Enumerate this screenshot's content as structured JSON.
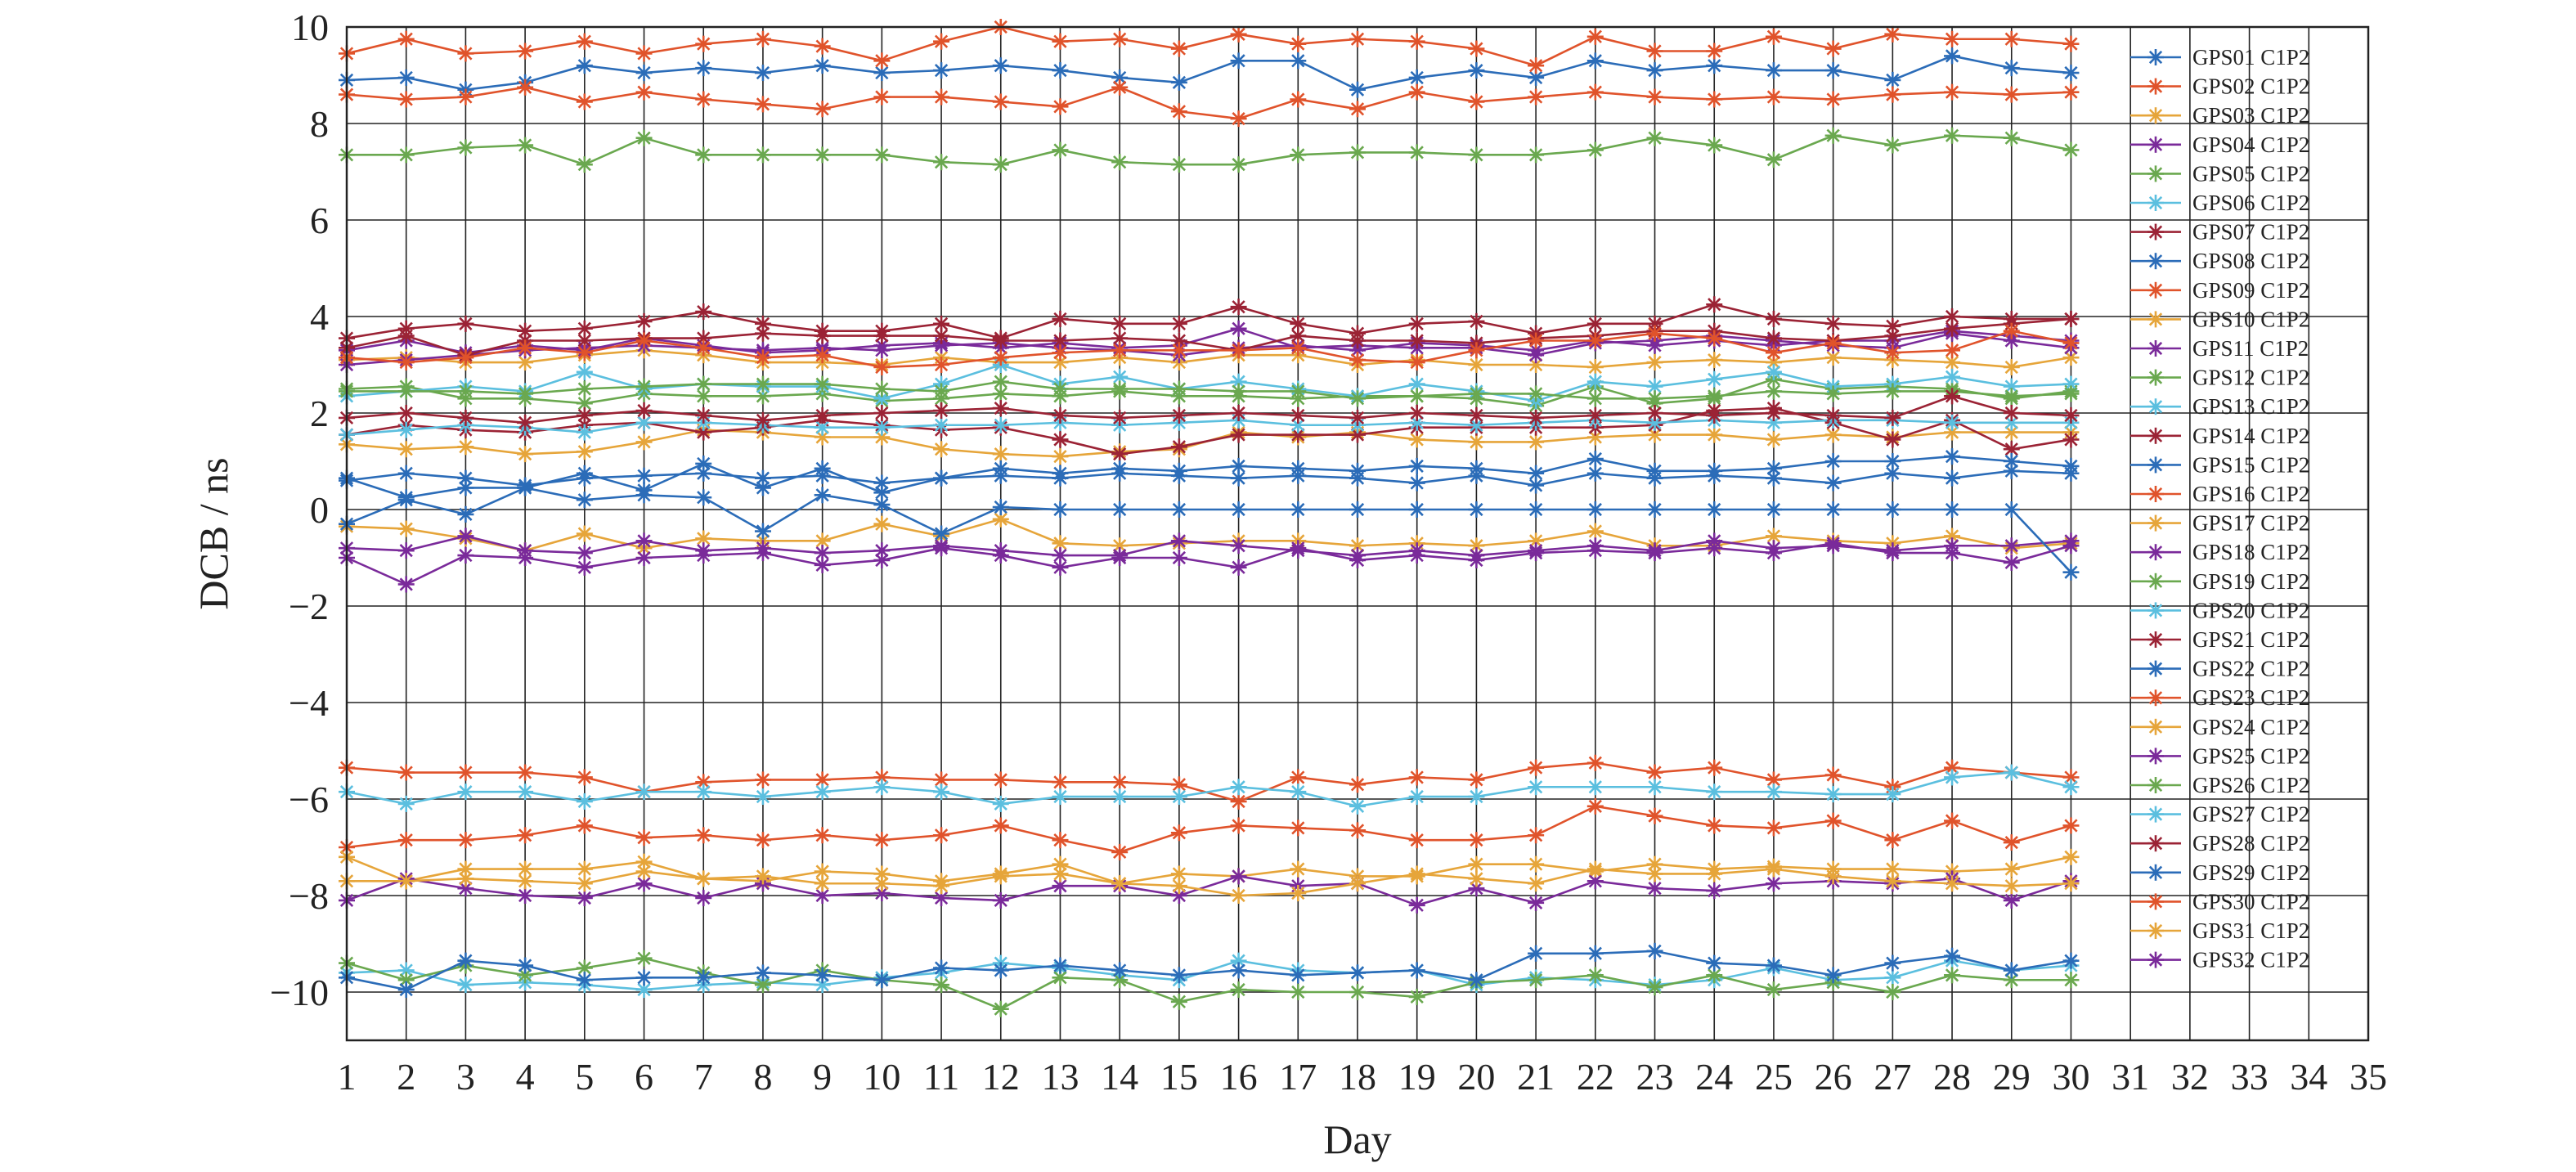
{
  "chart_data": {
    "type": "line",
    "title": "",
    "xlabel": "Day",
    "ylabel": "DCB / ns",
    "xlim": [
      1,
      35
    ],
    "ylim": [
      -11,
      10
    ],
    "xticks": [
      1,
      2,
      3,
      4,
      5,
      6,
      7,
      8,
      9,
      10,
      11,
      12,
      13,
      14,
      15,
      16,
      17,
      18,
      19,
      20,
      21,
      22,
      23,
      24,
      25,
      26,
      27,
      28,
      29,
      30,
      31,
      32,
      33,
      34,
      35
    ],
    "yticks": [
      -10,
      -8,
      -6,
      -4,
      -2,
      0,
      2,
      4,
      6,
      8,
      10
    ],
    "grid": true,
    "legend_position": "right",
    "marker": "asterisk",
    "x": [
      1,
      2,
      3,
      4,
      5,
      6,
      7,
      8,
      9,
      10,
      11,
      12,
      13,
      14,
      15,
      16,
      17,
      18,
      19,
      20,
      21,
      22,
      23,
      24,
      25,
      26,
      27,
      28,
      29,
      30
    ],
    "series": [
      {
        "name": "GPS01 C1P2",
        "color": "#2b6cb8",
        "values": [
          8.9,
          8.95,
          8.7,
          8.85,
          9.2,
          9.05,
          9.15,
          9.05,
          9.2,
          9.05,
          9.1,
          9.2,
          9.1,
          8.95,
          8.85,
          9.3,
          9.3,
          8.7,
          8.95,
          9.1,
          8.95,
          9.3,
          9.1,
          9.2,
          9.1,
          9.1,
          8.9,
          9.4,
          9.15,
          9.05
        ]
      },
      {
        "name": "GPS02 C1P2",
        "color": "#e0532b",
        "values": [
          9.45,
          9.75,
          9.45,
          9.5,
          9.7,
          9.45,
          9.65,
          9.75,
          9.6,
          9.3,
          9.7,
          10.0,
          9.7,
          9.75,
          9.55,
          9.85,
          9.65,
          9.75,
          9.7,
          9.55,
          9.2,
          9.8,
          9.5,
          9.5,
          9.8,
          9.55,
          9.85,
          9.75,
          9.75,
          9.65
        ]
      },
      {
        "name": "GPS03 C1P2",
        "color": "#e6a53a",
        "values": [
          3.1,
          3.15,
          3.05,
          3.05,
          3.2,
          3.3,
          3.2,
          3.05,
          3.05,
          3.0,
          3.15,
          3.05,
          3.05,
          3.15,
          3.05,
          3.2,
          3.2,
          3.0,
          3.1,
          3.0,
          3.0,
          2.95,
          3.05,
          3.1,
          3.05,
          3.15,
          3.1,
          3.05,
          2.95,
          3.15
        ]
      },
      {
        "name": "GPS04 C1P2",
        "color": "#7a2a9a",
        "values": [
          3.0,
          3.1,
          3.2,
          3.3,
          3.35,
          3.4,
          3.35,
          3.3,
          3.35,
          3.3,
          3.4,
          3.45,
          3.35,
          3.3,
          3.2,
          3.35,
          3.4,
          3.3,
          3.45,
          3.4,
          3.3,
          3.5,
          3.4,
          3.5,
          3.4,
          3.5,
          3.5,
          3.7,
          3.6,
          3.5
        ]
      },
      {
        "name": "GPS05 C1P2",
        "color": "#6aa84f",
        "values": [
          7.35,
          7.35,
          7.5,
          7.55,
          7.15,
          7.7,
          7.35,
          7.35,
          7.35,
          7.35,
          7.2,
          7.15,
          7.45,
          7.2,
          7.15,
          7.15,
          7.35,
          7.4,
          7.4,
          7.35,
          7.35,
          7.45,
          7.7,
          7.55,
          7.25,
          7.75,
          7.55,
          7.75,
          7.7,
          7.45
        ]
      },
      {
        "name": "GPS06 C1P2",
        "color": "#5bbfdf",
        "values": [
          -9.6,
          -9.55,
          -9.85,
          -9.8,
          -9.85,
          -9.95,
          -9.85,
          -9.8,
          -9.85,
          -9.7,
          -9.6,
          -9.4,
          -9.5,
          -9.65,
          -9.75,
          -9.35,
          -9.55,
          -9.6,
          -9.55,
          -9.85,
          -9.7,
          -9.75,
          -9.85,
          -9.75,
          -9.5,
          -9.75,
          -9.7,
          -9.35,
          -9.55,
          -9.45
        ]
      },
      {
        "name": "GPS07 C1P2",
        "color": "#9b2335",
        "values": [
          3.55,
          3.75,
          3.85,
          3.7,
          3.75,
          3.9,
          4.1,
          3.85,
          3.7,
          3.7,
          3.85,
          3.55,
          3.95,
          3.85,
          3.85,
          4.2,
          3.85,
          3.65,
          3.85,
          3.9,
          3.65,
          3.85,
          3.85,
          4.25,
          3.95,
          3.85,
          3.8,
          4.0,
          3.95,
          3.95
        ]
      },
      {
        "name": "GPS08 C1P2",
        "color": "#2b6cb8",
        "values": [
          0.6,
          0.75,
          0.65,
          0.5,
          0.65,
          0.7,
          0.75,
          0.65,
          0.7,
          0.55,
          0.65,
          0.7,
          0.65,
          0.75,
          0.7,
          0.65,
          0.7,
          0.65,
          0.55,
          0.7,
          0.5,
          0.75,
          0.65,
          0.7,
          0.65,
          0.55,
          0.75,
          0.65,
          0.8,
          0.75
        ]
      },
      {
        "name": "GPS09 C1P2",
        "color": "#e0532b",
        "values": [
          8.6,
          8.5,
          8.55,
          8.75,
          8.45,
          8.65,
          8.5,
          8.4,
          8.3,
          8.55,
          8.55,
          8.45,
          8.35,
          8.75,
          8.25,
          8.1,
          8.5,
          8.3,
          8.65,
          8.45,
          8.55,
          8.65,
          8.55,
          8.5,
          8.55,
          8.5,
          8.6,
          8.65,
          8.6,
          8.65
        ]
      },
      {
        "name": "GPS10 C1P2",
        "color": "#e6a53a",
        "values": [
          1.35,
          1.25,
          1.3,
          1.15,
          1.2,
          1.4,
          1.65,
          1.6,
          1.5,
          1.5,
          1.25,
          1.15,
          1.1,
          1.2,
          1.25,
          1.6,
          1.5,
          1.6,
          1.45,
          1.4,
          1.4,
          1.5,
          1.55,
          1.55,
          1.45,
          1.55,
          1.5,
          1.6,
          1.6,
          1.6
        ]
      },
      {
        "name": "GPS11 C1P2",
        "color": "#7a2a9a",
        "values": [
          3.3,
          3.5,
          3.25,
          3.4,
          3.3,
          3.55,
          3.4,
          3.25,
          3.3,
          3.4,
          3.45,
          3.35,
          3.45,
          3.35,
          3.4,
          3.75,
          3.35,
          3.4,
          3.35,
          3.35,
          3.2,
          3.45,
          3.5,
          3.6,
          3.5,
          3.4,
          3.35,
          3.65,
          3.5,
          3.35
        ]
      },
      {
        "name": "GPS12 C1P2",
        "color": "#6aa84f",
        "values": [
          2.5,
          2.55,
          2.3,
          2.3,
          2.2,
          2.4,
          2.35,
          2.35,
          2.4,
          2.25,
          2.3,
          2.4,
          2.35,
          2.45,
          2.35,
          2.35,
          2.3,
          2.35,
          2.35,
          2.3,
          2.15,
          2.55,
          2.2,
          2.3,
          2.7,
          2.5,
          2.55,
          2.5,
          2.3,
          2.45
        ]
      },
      {
        "name": "GPS13 C1P2",
        "color": "#5bbfdf",
        "values": [
          2.35,
          2.45,
          2.55,
          2.45,
          2.85,
          2.5,
          2.6,
          2.55,
          2.55,
          2.3,
          2.6,
          3.0,
          2.6,
          2.75,
          2.5,
          2.65,
          2.5,
          2.35,
          2.6,
          2.45,
          2.25,
          2.65,
          2.55,
          2.7,
          2.85,
          2.55,
          2.6,
          2.75,
          2.55,
          2.6
        ]
      },
      {
        "name": "GPS14 C1P2",
        "color": "#9b2335",
        "values": [
          1.55,
          1.75,
          1.65,
          1.6,
          1.75,
          1.8,
          1.6,
          1.7,
          1.85,
          1.75,
          1.65,
          1.7,
          1.45,
          1.15,
          1.3,
          1.55,
          1.55,
          1.55,
          1.7,
          1.7,
          1.7,
          1.7,
          1.75,
          2.05,
          2.1,
          1.8,
          1.45,
          1.85,
          1.25,
          1.45
        ]
      },
      {
        "name": "GPS15 C1P2",
        "color": "#2b6cb8",
        "values": [
          0.65,
          0.25,
          0.45,
          0.45,
          0.75,
          0.4,
          0.95,
          0.45,
          0.85,
          0.35,
          0.65,
          0.85,
          0.75,
          0.85,
          0.8,
          0.9,
          0.85,
          0.8,
          0.9,
          0.85,
          0.75,
          1.05,
          0.8,
          0.8,
          0.85,
          1.0,
          1.0,
          1.1,
          1.0,
          0.9
        ]
      },
      {
        "name": "GPS16 C1P2",
        "color": "#e0532b",
        "values": [
          -5.35,
          -5.45,
          -5.45,
          -5.45,
          -5.55,
          -5.85,
          -5.65,
          -5.6,
          -5.6,
          -5.55,
          -5.6,
          -5.6,
          -5.65,
          -5.65,
          -5.7,
          -6.05,
          -5.55,
          -5.7,
          -5.55,
          -5.6,
          -5.35,
          -5.25,
          -5.45,
          -5.35,
          -5.6,
          -5.5,
          -5.75,
          -5.35,
          -5.45,
          -5.55
        ]
      },
      {
        "name": "GPS17 C1P2",
        "color": "#e6a53a",
        "values": [
          -0.35,
          -0.4,
          -0.6,
          -0.85,
          -0.5,
          -0.8,
          -0.6,
          -0.65,
          -0.65,
          -0.3,
          -0.55,
          -0.2,
          -0.7,
          -0.75,
          -0.7,
          -0.65,
          -0.65,
          -0.75,
          -0.7,
          -0.75,
          -0.65,
          -0.45,
          -0.75,
          -0.75,
          -0.55,
          -0.65,
          -0.7,
          -0.55,
          -0.8,
          -0.7
        ]
      },
      {
        "name": "GPS18 C1P2",
        "color": "#7a2a9a",
        "values": [
          -0.8,
          -0.85,
          -0.55,
          -0.85,
          -0.9,
          -0.65,
          -0.85,
          -0.8,
          -0.9,
          -0.85,
          -0.75,
          -0.85,
          -0.95,
          -0.95,
          -0.65,
          -0.75,
          -0.85,
          -0.95,
          -0.85,
          -0.95,
          -0.85,
          -0.75,
          -0.85,
          -0.65,
          -0.8,
          -0.75,
          -0.85,
          -0.75,
          -0.75,
          -0.65
        ]
      },
      {
        "name": "GPS19 C1P2",
        "color": "#6aa84f",
        "values": [
          -9.4,
          -9.75,
          -9.45,
          -9.65,
          -9.5,
          -9.3,
          -9.6,
          -9.85,
          -9.55,
          -9.75,
          -9.85,
          -10.35,
          -9.7,
          -9.75,
          -10.2,
          -9.95,
          -10.0,
          -10.0,
          -10.1,
          -9.8,
          -9.75,
          -9.65,
          -9.9,
          -9.65,
          -9.95,
          -9.8,
          -10.0,
          -9.65,
          -9.75,
          -9.75
        ]
      },
      {
        "name": "GPS20 C1P2",
        "color": "#5bbfdf",
        "values": [
          -5.85,
          -6.1,
          -5.85,
          -5.85,
          -6.05,
          -5.85,
          -5.85,
          -5.95,
          -5.85,
          -5.75,
          -5.85,
          -6.1,
          -5.95,
          -5.95,
          -5.95,
          -5.75,
          -5.85,
          -6.15,
          -5.95,
          -5.95,
          -5.75,
          -5.75,
          -5.75,
          -5.85,
          -5.85,
          -5.9,
          -5.9,
          -5.55,
          -5.45,
          -5.75
        ]
      },
      {
        "name": "GPS21 C1P2",
        "color": "#9b2335",
        "values": [
          3.35,
          3.6,
          3.2,
          3.5,
          3.5,
          3.55,
          3.55,
          3.65,
          3.6,
          3.6,
          3.6,
          3.5,
          3.5,
          3.55,
          3.5,
          3.3,
          3.6,
          3.5,
          3.5,
          3.45,
          3.55,
          3.6,
          3.7,
          3.7,
          3.55,
          3.5,
          3.6,
          3.75,
          3.85,
          3.95
        ]
      },
      {
        "name": "GPS22 C1P2",
        "color": "#2b6cb8",
        "values": [
          -9.7,
          -9.95,
          -9.35,
          -9.45,
          -9.75,
          -9.7,
          -9.7,
          -9.6,
          -9.65,
          -9.75,
          -9.5,
          -9.55,
          -9.45,
          -9.55,
          -9.65,
          -9.55,
          -9.65,
          -9.6,
          -9.55,
          -9.75,
          -9.2,
          -9.2,
          -9.15,
          -9.4,
          -9.45,
          -9.65,
          -9.4,
          -9.25,
          -9.55,
          -9.35
        ]
      },
      {
        "name": "GPS23 C1P2",
        "color": "#e0532b",
        "values": [
          -7.0,
          -6.85,
          -6.85,
          -6.75,
          -6.55,
          -6.8,
          -6.75,
          -6.85,
          -6.75,
          -6.85,
          -6.75,
          -6.55,
          -6.85,
          -7.1,
          -6.7,
          -6.55,
          -6.6,
          -6.65,
          -6.85,
          -6.85,
          -6.75,
          -6.15,
          -6.35,
          -6.55,
          -6.6,
          -6.45,
          -6.85,
          -6.45,
          -6.9,
          -6.55
        ]
      },
      {
        "name": "GPS24 C1P2",
        "color": "#e6a53a",
        "values": [
          -7.2,
          -7.7,
          -7.45,
          -7.45,
          -7.45,
          -7.3,
          -7.65,
          -7.7,
          -7.5,
          -7.55,
          -7.7,
          -7.55,
          -7.35,
          -7.75,
          -7.55,
          -7.6,
          -7.45,
          -7.6,
          -7.6,
          -7.35,
          -7.35,
          -7.5,
          -7.35,
          -7.45,
          -7.4,
          -7.45,
          -7.45,
          -7.5,
          -7.45,
          -7.2
        ]
      },
      {
        "name": "GPS25 C1P2",
        "color": "#7a2a9a",
        "values": [
          -8.1,
          -7.65,
          -7.85,
          -8.0,
          -8.05,
          -7.75,
          -8.05,
          -7.75,
          -8.0,
          -7.95,
          -8.05,
          -8.1,
          -7.8,
          -7.8,
          -8.0,
          -7.6,
          -7.8,
          -7.75,
          -8.2,
          -7.85,
          -8.15,
          -7.7,
          -7.85,
          -7.9,
          -7.75,
          -7.7,
          -7.75,
          -7.65,
          -8.1,
          -7.7
        ]
      },
      {
        "name": "GPS26 C1P2",
        "color": "#6aa84f",
        "values": [
          2.45,
          2.45,
          2.45,
          2.4,
          2.5,
          2.55,
          2.6,
          2.6,
          2.6,
          2.5,
          2.45,
          2.65,
          2.5,
          2.5,
          2.5,
          2.45,
          2.45,
          2.3,
          2.35,
          2.4,
          2.4,
          2.3,
          2.3,
          2.35,
          2.45,
          2.4,
          2.45,
          2.45,
          2.35,
          2.4
        ]
      },
      {
        "name": "GPS27 C1P2",
        "color": "#5bbfdf",
        "values": [
          1.55,
          1.65,
          1.75,
          1.7,
          1.6,
          1.8,
          1.8,
          1.75,
          1.7,
          1.7,
          1.75,
          1.75,
          1.8,
          1.75,
          1.8,
          1.85,
          1.75,
          1.75,
          1.8,
          1.75,
          1.8,
          1.85,
          1.8,
          1.85,
          1.8,
          1.85,
          1.85,
          1.8,
          1.8,
          1.8
        ]
      },
      {
        "name": "GPS28 C1P2",
        "color": "#9b2335",
        "values": [
          1.9,
          2.0,
          1.9,
          1.8,
          1.95,
          2.05,
          1.95,
          1.85,
          1.95,
          2.0,
          2.05,
          2.1,
          1.95,
          1.9,
          1.95,
          2.0,
          1.95,
          1.9,
          2.0,
          1.95,
          1.9,
          1.95,
          2.0,
          1.95,
          2.0,
          1.95,
          1.9,
          2.35,
          2.0,
          1.95
        ]
      },
      {
        "name": "GPS29 C1P2",
        "color": "#2b6cb8",
        "values": [
          -0.3,
          0.2,
          -0.1,
          0.45,
          0.2,
          0.3,
          0.25,
          -0.45,
          0.3,
          0.1,
          -0.5,
          0.05,
          0.0,
          0.0,
          0.0,
          0.0,
          0.0,
          0.0,
          0.0,
          0.0,
          0.0,
          0.0,
          0.0,
          0.0,
          0.0,
          0.0,
          0.0,
          0.0,
          0.0,
          -1.3
        ]
      },
      {
        "name": "GPS30 C1P2",
        "color": "#e0532b",
        "values": [
          3.15,
          3.05,
          3.15,
          3.35,
          3.25,
          3.5,
          3.35,
          3.15,
          3.2,
          2.95,
          3.0,
          3.15,
          3.25,
          3.3,
          3.3,
          3.3,
          3.35,
          3.1,
          3.05,
          3.3,
          3.5,
          3.5,
          3.65,
          3.55,
          3.25,
          3.45,
          3.25,
          3.3,
          3.7,
          3.45
        ]
      },
      {
        "name": "GPS31 C1P2",
        "color": "#e6a53a",
        "values": [
          -7.7,
          -7.7,
          -7.65,
          -7.7,
          -7.75,
          -7.5,
          -7.65,
          -7.6,
          -7.75,
          -7.75,
          -7.8,
          -7.6,
          -7.55,
          -7.75,
          -7.8,
          -8.0,
          -7.95,
          -7.75,
          -7.55,
          -7.65,
          -7.75,
          -7.45,
          -7.55,
          -7.55,
          -7.45,
          -7.6,
          -7.7,
          -7.75,
          -7.8,
          -7.75
        ]
      },
      {
        "name": "GPS32 C1P2",
        "color": "#7a2a9a",
        "values": [
          -1.0,
          -1.55,
          -0.95,
          -1.0,
          -1.2,
          -1.0,
          -0.95,
          -0.9,
          -1.15,
          -1.05,
          -0.8,
          -0.95,
          -1.2,
          -1.0,
          -1.0,
          -1.2,
          -0.8,
          -1.05,
          -0.95,
          -1.05,
          -0.9,
          -0.85,
          -0.9,
          -0.8,
          -0.9,
          -0.7,
          -0.9,
          -0.9,
          -1.1,
          -0.75
        ]
      }
    ]
  }
}
